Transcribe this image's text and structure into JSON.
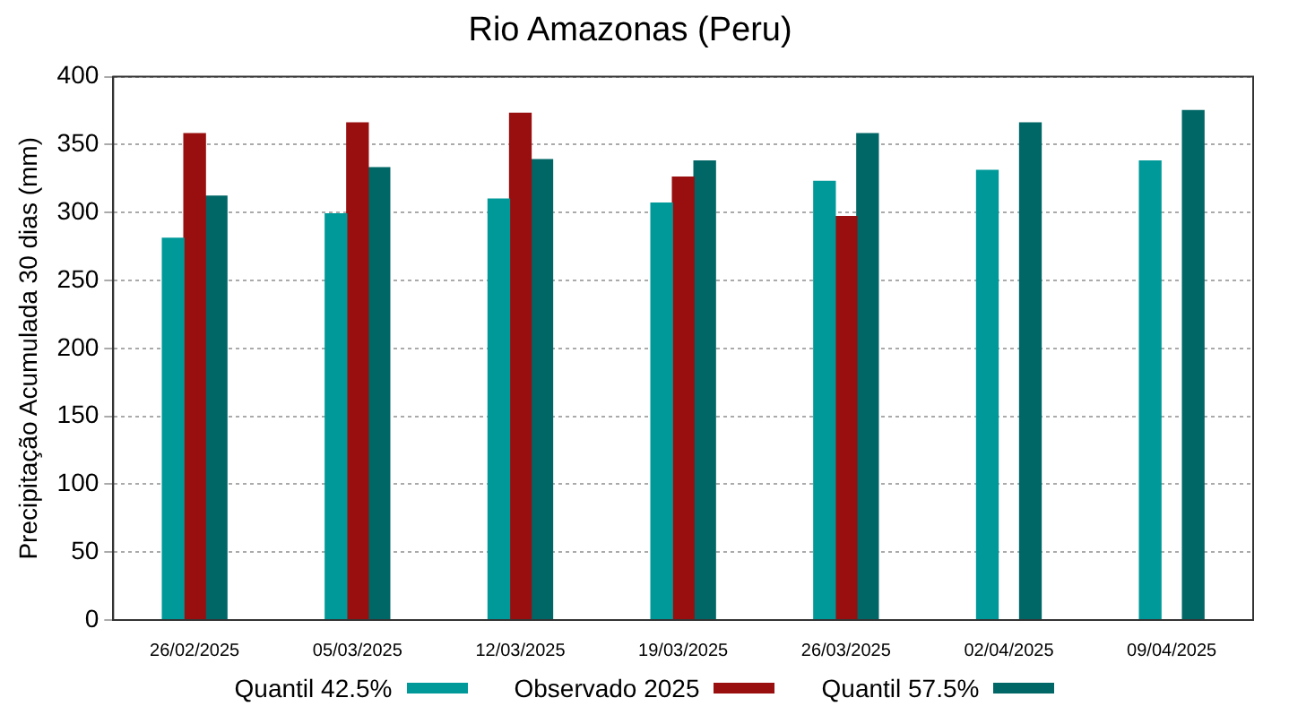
{
  "chart_data": {
    "type": "bar",
    "title": "Rio Amazonas (Peru)",
    "ylabel": "Precipitação Acumulada 30 dias (mm)",
    "categories": [
      "26/02/2025",
      "05/03/2025",
      "12/03/2025",
      "19/03/2025",
      "26/03/2025",
      "02/04/2025",
      "09/04/2025"
    ],
    "series": [
      {
        "name": "Quantil 42.5%",
        "color": "#009999",
        "values": [
          281,
          299,
          310,
          307,
          323,
          331,
          338
        ]
      },
      {
        "name": "Observado 2025",
        "color": "#990f0f",
        "values": [
          358,
          366,
          373,
          326,
          297,
          null,
          null
        ]
      },
      {
        "name": "Quantil 57.5%",
        "color": "#006666",
        "values": [
          312,
          333,
          339,
          338,
          358,
          366,
          375
        ]
      }
    ],
    "ylim": [
      0,
      400
    ],
    "yticks": [
      0,
      50,
      100,
      150,
      200,
      250,
      300,
      350,
      400
    ],
    "grid": "y",
    "legend": "bottom"
  }
}
